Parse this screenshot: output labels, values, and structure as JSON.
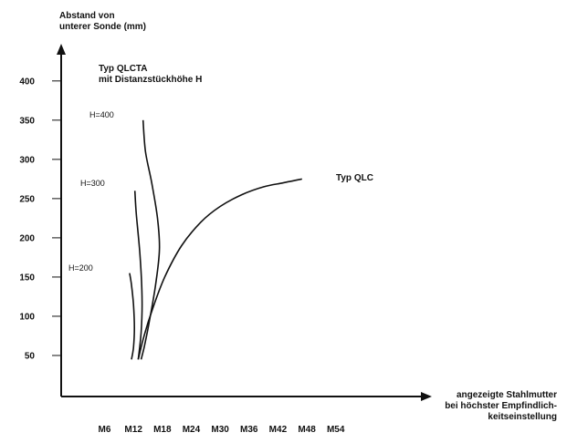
{
  "chart_data": {
    "type": "line",
    "ylabel_lines": [
      "Abstand von",
      "unterer Sonde (mm)"
    ],
    "xlabel_lines": [
      "angezeigte Stahlmutter",
      "bei höchster Empfindlich-",
      "keitseinstellung"
    ],
    "x_categories": [
      "M6",
      "M12",
      "M18",
      "M24",
      "M30",
      "M36",
      "M42",
      "M48",
      "M54"
    ],
    "y_ticks": [
      50,
      100,
      150,
      200,
      250,
      300,
      350,
      400
    ],
    "ylim": [
      0,
      440
    ],
    "annotation_lines": [
      "Typ QLCTA",
      "mit Distanzstückhöhe H"
    ],
    "grid": false,
    "series": [
      {
        "name": "H=200",
        "points": [
          [
            11.6,
            45
          ],
          [
            12.0,
            60
          ],
          [
            12.2,
            85
          ],
          [
            12.0,
            115
          ],
          [
            11.6,
            140
          ],
          [
            11.2,
            155
          ]
        ]
      },
      {
        "name": "H=300",
        "points": [
          [
            13.0,
            45
          ],
          [
            13.6,
            80
          ],
          [
            13.8,
            120
          ],
          [
            13.4,
            175
          ],
          [
            12.6,
            230
          ],
          [
            12.3,
            260
          ]
        ]
      },
      {
        "name": "H=400",
        "points": [
          [
            13.6,
            45
          ],
          [
            14.2,
            60
          ],
          [
            15.2,
            90
          ],
          [
            16.6,
            140
          ],
          [
            17.4,
            185
          ],
          [
            17.0,
            225
          ],
          [
            15.8,
            270
          ],
          [
            14.5,
            310
          ],
          [
            14.0,
            350
          ]
        ]
      },
      {
        "name": "Typ QLC",
        "points": [
          [
            13.0,
            45
          ],
          [
            14.2,
            75
          ],
          [
            16.0,
            110
          ],
          [
            18.5,
            150
          ],
          [
            22.0,
            190
          ],
          [
            26.0,
            220
          ],
          [
            30.0,
            240
          ],
          [
            34.5,
            255
          ],
          [
            39.0,
            265
          ],
          [
            43.0,
            270
          ],
          [
            47.0,
            275
          ]
        ]
      }
    ]
  }
}
